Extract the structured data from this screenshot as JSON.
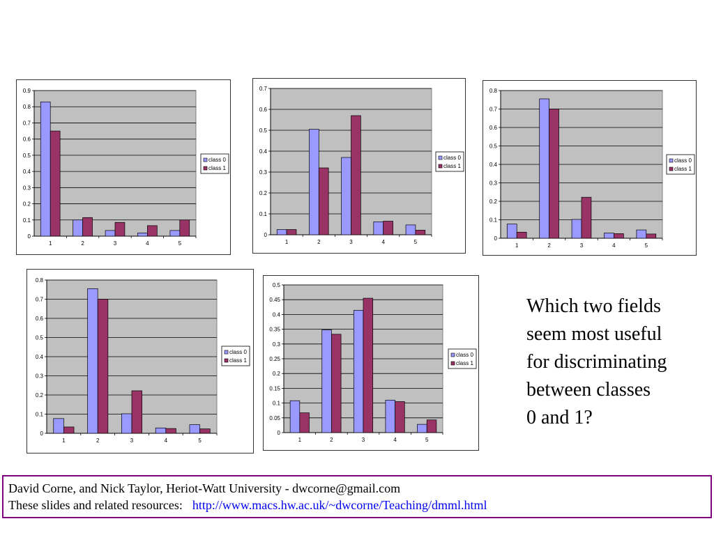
{
  "colors": {
    "class0": "#9999ff",
    "class1": "#993366",
    "plot_bg": "#c0c0c0",
    "grid": "#000000",
    "footer_border": "#800080",
    "link": "#0000ee"
  },
  "chart_data": [
    {
      "type": "bar",
      "categories": [
        "1",
        "2",
        "3",
        "4",
        "5"
      ],
      "ylim": [
        0,
        0.9
      ],
      "ytick_step": 0.1,
      "yticks": [
        "0",
        "0.1",
        "0.2",
        "0.3",
        "0.4",
        "0.5",
        "0.6",
        "0.7",
        "0.8",
        "0.9"
      ],
      "grid": true,
      "legend": "right",
      "series": [
        {
          "name": "class 0",
          "values": [
            0.83,
            0.1,
            0.035,
            0.02,
            0.035
          ]
        },
        {
          "name": "class 1",
          "values": [
            0.65,
            0.115,
            0.085,
            0.065,
            0.1
          ]
        }
      ]
    },
    {
      "type": "bar",
      "categories": [
        "1",
        "2",
        "3",
        "4",
        "5"
      ],
      "ylim": [
        0,
        0.7
      ],
      "ytick_step": 0.1,
      "yticks": [
        "0",
        "0.1",
        "0.2",
        "0.3",
        "0.4",
        "0.5",
        "0.6",
        "0.7"
      ],
      "grid": true,
      "legend": "right",
      "series": [
        {
          "name": "class 0",
          "values": [
            0.025,
            0.505,
            0.37,
            0.062,
            0.047
          ]
        },
        {
          "name": "class 1",
          "values": [
            0.025,
            0.32,
            0.57,
            0.065,
            0.022
          ]
        }
      ]
    },
    {
      "type": "bar",
      "categories": [
        "1",
        "2",
        "3",
        "4",
        "5"
      ],
      "ylim": [
        0,
        0.8
      ],
      "ytick_step": 0.1,
      "yticks": [
        "0",
        "0.1",
        "0.2",
        "0.3",
        "0.4",
        "0.5",
        "0.6",
        "0.7",
        "0.8"
      ],
      "grid": true,
      "legend": "right",
      "series": [
        {
          "name": "class 0",
          "values": [
            0.077,
            0.755,
            0.102,
            0.028,
            0.045
          ]
        },
        {
          "name": "class 1",
          "values": [
            0.033,
            0.7,
            0.222,
            0.025,
            0.023
          ]
        }
      ]
    },
    {
      "type": "bar",
      "categories": [
        "1",
        "2",
        "3",
        "4",
        "5"
      ],
      "ylim": [
        0,
        0.8
      ],
      "ytick_step": 0.1,
      "yticks": [
        "0",
        "0.1",
        "0.2",
        "0.3",
        "0.4",
        "0.5",
        "0.6",
        "0.7",
        "0.8"
      ],
      "grid": true,
      "legend": "right",
      "series": [
        {
          "name": "class 0",
          "values": [
            0.077,
            0.755,
            0.102,
            0.028,
            0.045
          ]
        },
        {
          "name": "class 1",
          "values": [
            0.033,
            0.7,
            0.222,
            0.025,
            0.023
          ]
        }
      ]
    },
    {
      "type": "bar",
      "categories": [
        "1",
        "2",
        "3",
        "4",
        "5"
      ],
      "ylim": [
        0,
        0.5
      ],
      "ytick_step": 0.05,
      "yticks": [
        "0",
        "0.05",
        "0.1",
        "0.15",
        "0.2",
        "0.25",
        "0.3",
        "0.35",
        "0.4",
        "0.45",
        "0.5"
      ],
      "grid": true,
      "legend": "right",
      "series": [
        {
          "name": "class 0",
          "values": [
            0.108,
            0.348,
            0.414,
            0.11,
            0.028
          ]
        },
        {
          "name": "class 1",
          "values": [
            0.067,
            0.333,
            0.455,
            0.105,
            0.043
          ]
        }
      ]
    }
  ],
  "question": {
    "text": "Which two fields\nseem most useful\nfor discriminating\nbetween classes\n0 and 1?"
  },
  "footer": {
    "line1": "David Corne, and Nick Taylor,  Heriot-Watt University  -  dwcorne@gmail.com",
    "line2_label": "These slides and related resources:",
    "line2_link": "http://www.macs.hw.ac.uk/~dwcorne/Teaching/dmml.html"
  }
}
